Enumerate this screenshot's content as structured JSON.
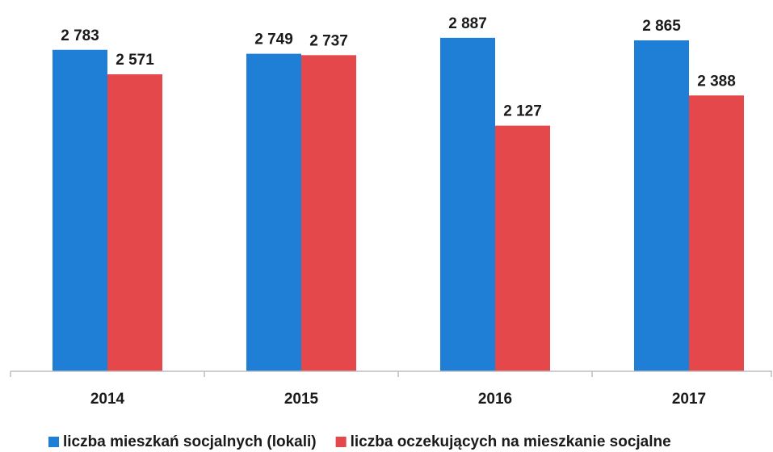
{
  "chart_data": {
    "type": "bar",
    "categories": [
      "2014",
      "2015",
      "2016",
      "2017"
    ],
    "ylim": [
      0,
      2900
    ],
    "series": [
      {
        "name": "liczba mieszkań socjalnych (lokali)",
        "color": "#1f7fd6",
        "values": [
          2783,
          2749,
          2887,
          2865
        ],
        "value_labels": [
          "2 783",
          "2 749",
          "2 887",
          "2 865"
        ]
      },
      {
        "name": "liczba oczekujących na mieszkanie socjalne",
        "color": "#e5484a",
        "values": [
          2571,
          2737,
          2127,
          2388
        ],
        "value_labels": [
          "2 571",
          "2 737",
          "2 127",
          "2 388"
        ]
      }
    ],
    "legend": "bottom"
  }
}
